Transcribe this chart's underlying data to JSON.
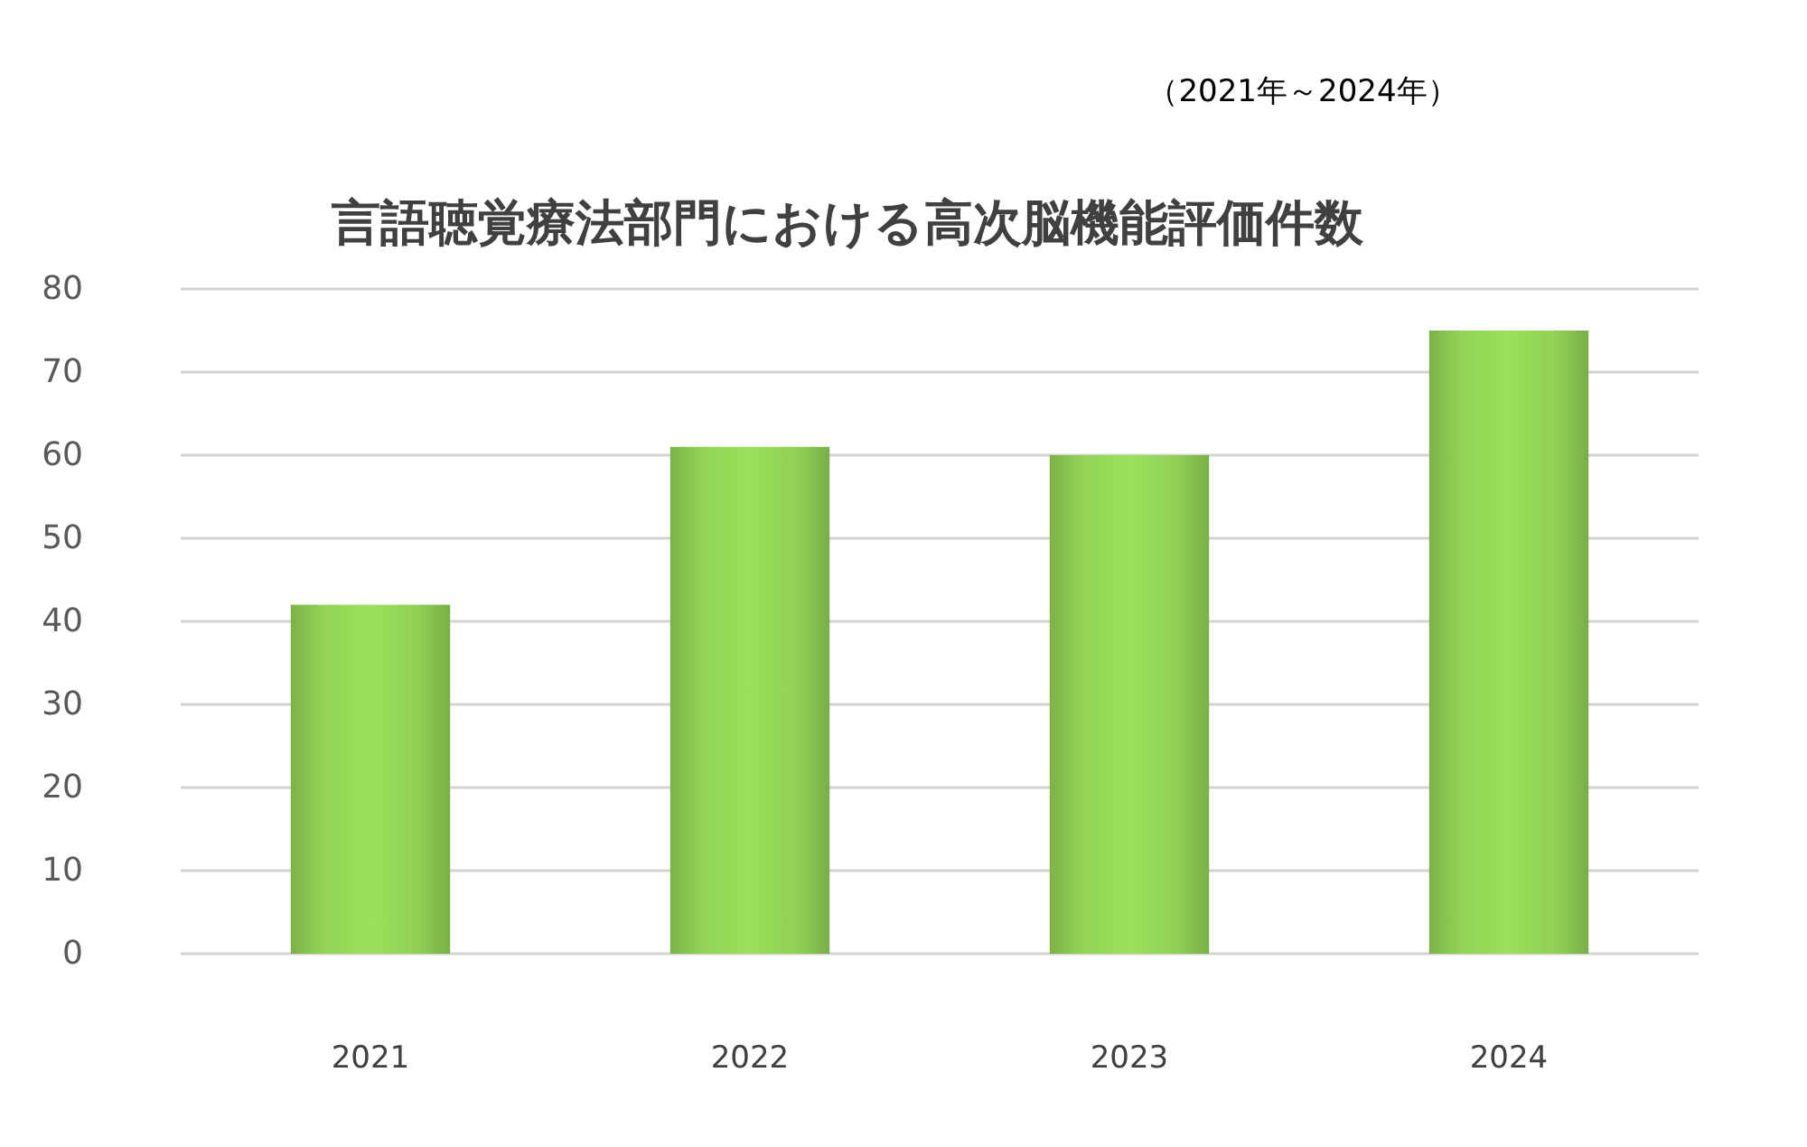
{
  "chart_data": {
    "type": "bar",
    "title": "言語聴覚療法部門における高次脳機能評価件数",
    "subtitle": "（2021年～2024年）",
    "categories": [
      "2021",
      "2022",
      "2023",
      "2024"
    ],
    "values": [
      42,
      61,
      60,
      75
    ],
    "color": "#9be05a",
    "ylim": [
      0,
      80
    ],
    "yticks": [
      0,
      10,
      20,
      30,
      40,
      50,
      60,
      70,
      80
    ],
    "grid": "y"
  }
}
